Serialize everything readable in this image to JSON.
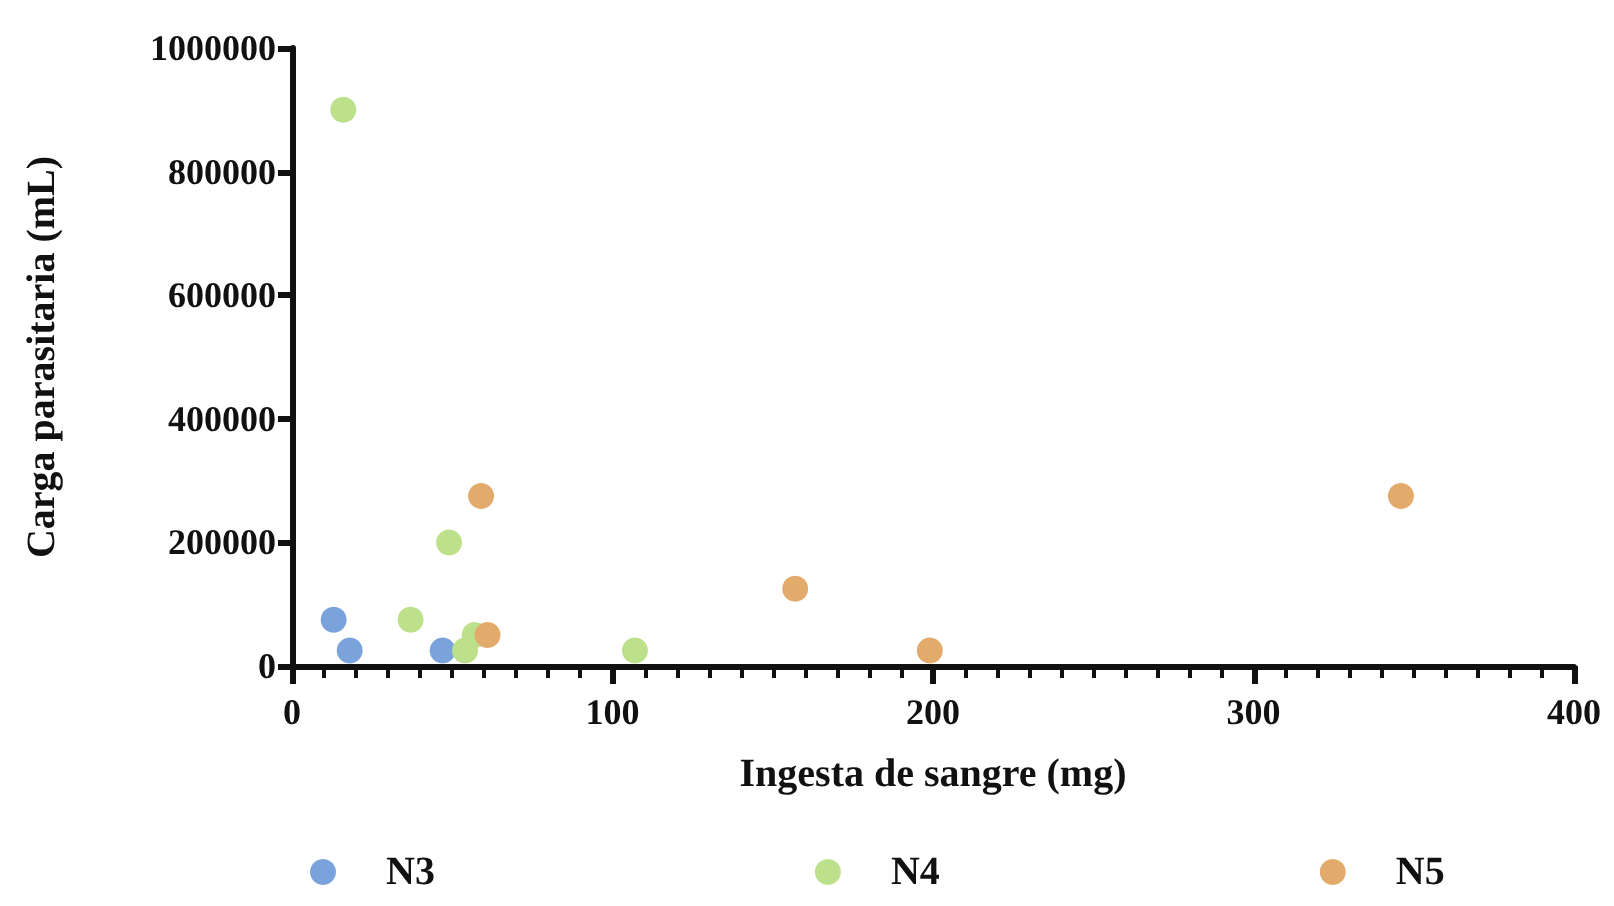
{
  "chart_data": {
    "type": "scatter",
    "xlabel": "Ingesta de sangre (mg)",
    "ylabel": "Carga parasitaria (mL)",
    "xlim": [
      0,
      400
    ],
    "xticks": [
      0,
      100,
      200,
      300,
      400
    ],
    "ylim": [
      0,
      1000000
    ],
    "yticks": [
      0,
      200000,
      400000,
      600000,
      800000,
      1000000
    ],
    "grid": false,
    "legend": "bottom",
    "marker": "circle",
    "series": [
      {
        "name": "N3",
        "color": "#7ba3db",
        "x": [
          13,
          18,
          47
        ],
        "values": [
          75000,
          25000,
          25000
        ]
      },
      {
        "name": "N4",
        "color": "#bde08a",
        "x": [
          16,
          37,
          49,
          54,
          57,
          107
        ],
        "values": [
          900000,
          75000,
          200000,
          25000,
          50000,
          25000
        ]
      },
      {
        "name": "N5",
        "color": "#e2ab6b",
        "x": [
          59,
          61,
          157,
          199,
          346
        ],
        "values": [
          275000,
          50000,
          125000,
          25000,
          275000
        ]
      }
    ]
  }
}
